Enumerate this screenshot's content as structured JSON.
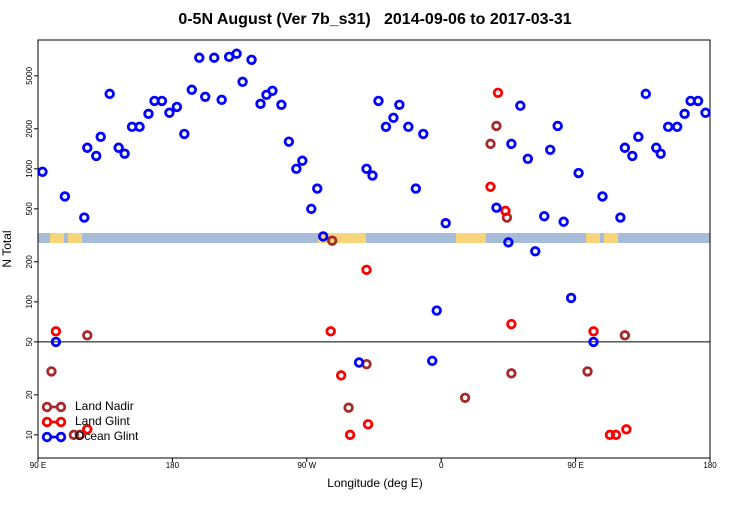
{
  "chart_data": {
    "type": "scatter",
    "title": "0-5N August (Ver 7b_s31)   2014-09-06 to 2017-03-31",
    "x_label": "Longitude (deg E)",
    "y_label": "N Total",
    "log_y": true,
    "legend": "bottom-left",
    "reference_line": 50,
    "xlim": [
      90,
      540
    ],
    "xticks": [
      {
        "value": 90,
        "label": "90 E"
      },
      180,
      {
        "value": 270,
        "label": "90 W"
      },
      {
        "value": 360,
        "label": "0"
      },
      {
        "value": 450,
        "label": "90 E"
      },
      {
        "value": 540,
        "label": "180"
      }
    ],
    "ylim": [
      6.7,
      9300
    ],
    "yticks": [
      10,
      20,
      50,
      100,
      200,
      500,
      1000,
      2000,
      5000
    ],
    "series": [
      {
        "name": "Land Nadir",
        "color": "#a52a2a",
        "x": [
          99,
          114,
          118,
          123,
          287,
          298,
          310,
          376,
          393,
          397,
          404,
          407,
          458,
          483
        ],
        "values": [
          30,
          10,
          10,
          56,
          288,
          16,
          34,
          19,
          1540,
          2100,
          430,
          29,
          30,
          56
        ]
      },
      {
        "name": "Land Glint",
        "color": "#ff0000",
        "x": [
          102,
          123,
          286,
          293,
          299,
          310,
          311,
          393,
          398,
          403,
          407,
          462,
          473,
          477,
          484
        ],
        "values": [
          60,
          11,
          60,
          28,
          10,
          174,
          12,
          733,
          3730,
          483,
          68,
          60,
          10,
          10,
          11
        ]
      },
      {
        "name": "Ocean Glint",
        "color": "#0000ff",
        "x": [
          93,
          102,
          108,
          121,
          123,
          129,
          132,
          138,
          144,
          148,
          153,
          158,
          164,
          168,
          173,
          178,
          183,
          188,
          193,
          198,
          202,
          208,
          213,
          218,
          223,
          227,
          233,
          239,
          243,
          247,
          253,
          258,
          263,
          267,
          273,
          277,
          281,
          305,
          310,
          314,
          318,
          323,
          328,
          332,
          338,
          343,
          348,
          354,
          357,
          363,
          397,
          405,
          407,
          413,
          418,
          423,
          429,
          433,
          438,
          442,
          447,
          452,
          462,
          468,
          480,
          483,
          488,
          492,
          497,
          504,
          507,
          512,
          518,
          523,
          527,
          532,
          537
        ],
        "values": [
          950,
          50,
          620,
          430,
          1440,
          1250,
          1740,
          3660,
          1440,
          1300,
          2070,
          2070,
          2590,
          3240,
          3240,
          2640,
          2920,
          1830,
          3930,
          6840,
          3480,
          6840,
          3300,
          6950,
          7330,
          4510,
          6600,
          3080,
          3600,
          3860,
          3030,
          1600,
          1000,
          1150,
          500,
          710,
          310,
          35,
          1000,
          890,
          3240,
          2070,
          2420,
          3030,
          2070,
          710,
          1830,
          36,
          86,
          390,
          510,
          280,
          1540,
          2980,
          1190,
          240,
          440,
          1390,
          2100,
          400,
          107,
          930,
          50,
          620,
          430,
          1440,
          1250,
          1740,
          3660,
          1440,
          1300,
          2070,
          2070,
          2590,
          3240,
          3240,
          2640
        ]
      }
    ]
  }
}
